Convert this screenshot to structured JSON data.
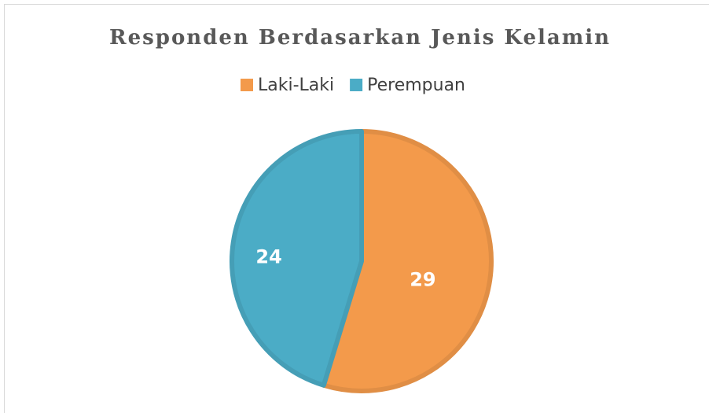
{
  "chart_data": {
    "type": "pie",
    "title": "Responden Berdasarkan Jenis Kelamin",
    "categories": [
      "Laki-Laki",
      "Perempuan"
    ],
    "values": [
      29,
      24
    ],
    "colors": [
      "#f39a4b",
      "#4bacc6"
    ],
    "legend": "top"
  }
}
